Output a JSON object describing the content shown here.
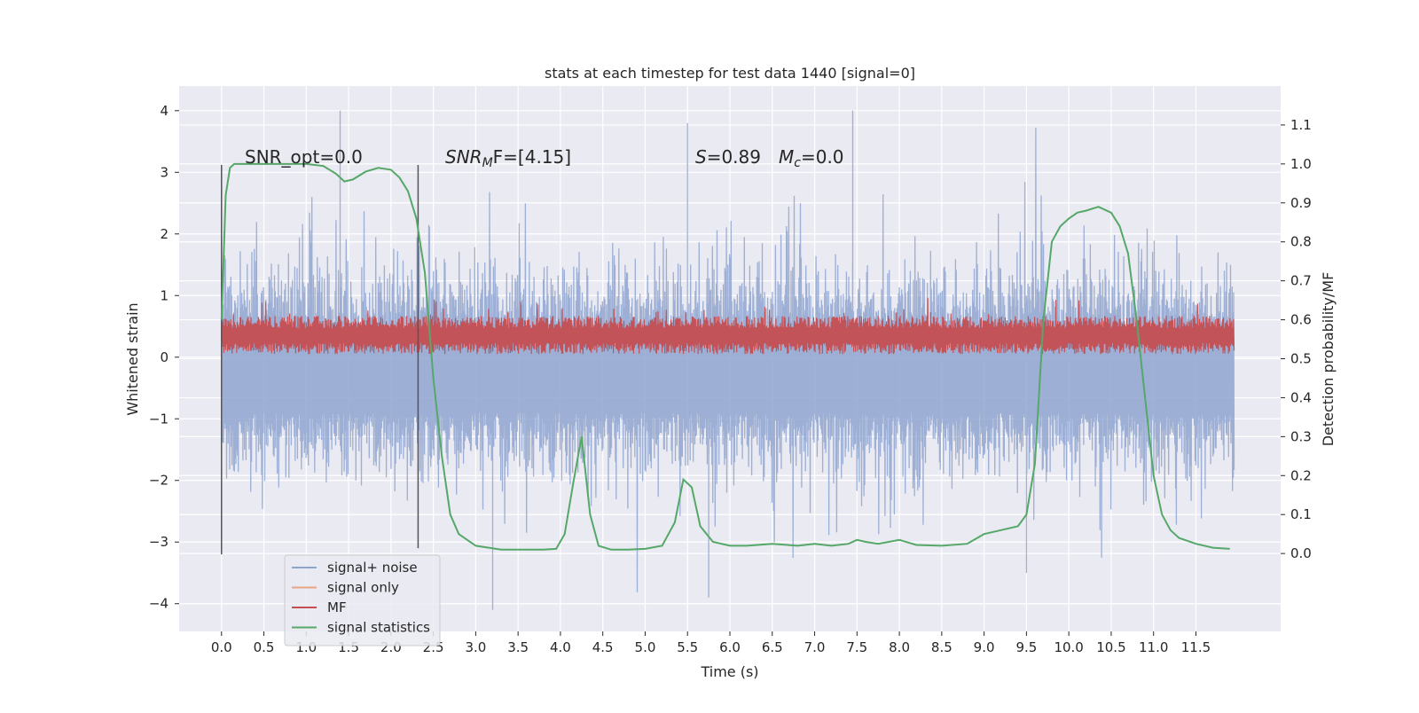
{
  "chart_data": {
    "type": "line",
    "title": "stats at each timestep for test data 1440 [signal=0]",
    "xlabel": "Time (s)",
    "ylabel_left": "Whitened strain",
    "ylabel_right": "Detection probability/MF",
    "xlim": [
      -0.5,
      12.5
    ],
    "ylim_left": [
      -4.45,
      4.4
    ],
    "ylim_right": [
      -0.2,
      1.2
    ],
    "grid": true,
    "x_ticks": [
      "0.0",
      "0.5",
      "1.0",
      "1.5",
      "2.0",
      "2.5",
      "3.0",
      "3.5",
      "4.0",
      "4.5",
      "5.0",
      "5.5",
      "6.0",
      "6.5",
      "7.0",
      "7.5",
      "8.0",
      "8.5",
      "9.0",
      "9.5",
      "10.0",
      "10.5",
      "11.0",
      "11.5"
    ],
    "y_ticks_left": [
      4,
      3,
      2,
      1,
      0,
      -1,
      -2,
      -3,
      -4
    ],
    "y_ticks_left_labels": [
      "4",
      "3",
      "2",
      "1",
      "0",
      "−1",
      "−2",
      "−3",
      "−4"
    ],
    "y_ticks_right": [
      1.1,
      1.0,
      0.9,
      0.8,
      0.7,
      0.6,
      0.5,
      0.4,
      0.3,
      0.2,
      0.1,
      0.0
    ],
    "y_ticks_right_labels": [
      "1.1",
      "1.0",
      "0.9",
      "0.8",
      "0.7",
      "0.6",
      "0.5",
      "0.4",
      "0.3",
      "0.2",
      "0.1",
      "0.0"
    ],
    "signal_noise_envelope": {
      "x": [
        0.0,
        11.95
      ],
      "upper_typical": 1.8,
      "lower_typical": -2.1,
      "peak_upper": 4.0,
      "peak_lower": -4.1,
      "note_values": [
        {
          "x": 1.4,
          "y": 4.0
        },
        {
          "x": 7.45,
          "y": 4.0
        },
        {
          "x": 5.5,
          "y": 3.8
        },
        {
          "x": 3.2,
          "y": -4.1
        },
        {
          "x": 5.75,
          "y": -3.9
        },
        {
          "x": 9.5,
          "y": -3.5
        }
      ]
    },
    "mf_band": {
      "x": [
        0.0,
        11.95
      ],
      "lower": 0.05,
      "upper": 0.55,
      "peak": 1.0
    },
    "vertical_markers": [
      {
        "x": 0.0,
        "y0": -3.2,
        "y1": 3.12
      },
      {
        "x": 2.32,
        "y0": -3.1,
        "y1": 3.12
      }
    ],
    "series": [
      {
        "name": "signal+ noise",
        "color": "#8fa5cf"
      },
      {
        "name": "signal only",
        "color": "#e8a487"
      },
      {
        "name": "MF",
        "color": "#c44e52"
      },
      {
        "name": "signal statistics",
        "color": "#55a868",
        "x": [
          0.0,
          0.05,
          0.1,
          0.15,
          0.2,
          0.3,
          0.5,
          0.8,
          1.0,
          1.2,
          1.35,
          1.45,
          1.55,
          1.7,
          1.85,
          2.0,
          2.1,
          2.2,
          2.3,
          2.4,
          2.5,
          2.6,
          2.7,
          2.8,
          3.0,
          3.3,
          3.6,
          3.8,
          3.95,
          4.05,
          4.15,
          4.25,
          4.35,
          4.45,
          4.6,
          4.8,
          5.0,
          5.2,
          5.35,
          5.45,
          5.55,
          5.65,
          5.8,
          6.0,
          6.2,
          6.5,
          6.8,
          7.0,
          7.2,
          7.4,
          7.5,
          7.6,
          7.75,
          8.0,
          8.2,
          8.5,
          8.8,
          9.0,
          9.2,
          9.4,
          9.5,
          9.6,
          9.7,
          9.8,
          9.9,
          10.0,
          10.1,
          10.2,
          10.35,
          10.5,
          10.6,
          10.7,
          10.8,
          10.9,
          11.0,
          11.1,
          11.2,
          11.3,
          11.5,
          11.7,
          11.9
        ],
        "y": [
          0.6,
          0.92,
          0.99,
          1.0,
          1.0,
          1.0,
          1.0,
          1.0,
          1.0,
          0.995,
          0.975,
          0.955,
          0.96,
          0.98,
          0.99,
          0.985,
          0.965,
          0.93,
          0.86,
          0.72,
          0.45,
          0.25,
          0.1,
          0.05,
          0.02,
          0.01,
          0.01,
          0.01,
          0.012,
          0.05,
          0.18,
          0.3,
          0.1,
          0.02,
          0.01,
          0.01,
          0.012,
          0.02,
          0.08,
          0.19,
          0.17,
          0.07,
          0.03,
          0.02,
          0.02,
          0.025,
          0.02,
          0.025,
          0.02,
          0.025,
          0.035,
          0.03,
          0.025,
          0.035,
          0.022,
          0.02,
          0.025,
          0.05,
          0.06,
          0.07,
          0.1,
          0.23,
          0.6,
          0.8,
          0.84,
          0.86,
          0.875,
          0.88,
          0.89,
          0.875,
          0.84,
          0.77,
          0.6,
          0.4,
          0.2,
          0.1,
          0.06,
          0.04,
          0.025,
          0.015,
          0.012
        ]
      }
    ],
    "annotations": [
      {
        "id": "snr-opt",
        "text": "SNR_opt=0.0"
      },
      {
        "id": "snr-mf",
        "text_parts": [
          "SNR",
          "M",
          "F=[4.15]"
        ]
      },
      {
        "id": "s-value",
        "text_parts": [
          "S",
          "=0.89"
        ]
      },
      {
        "id": "mc-value",
        "text_parts": [
          "M",
          "c",
          "=0.0"
        ]
      }
    ],
    "legend": {
      "placement": "lower-left",
      "entries": [
        "signal+ noise",
        "signal only",
        "MF",
        "signal statistics"
      ]
    }
  }
}
